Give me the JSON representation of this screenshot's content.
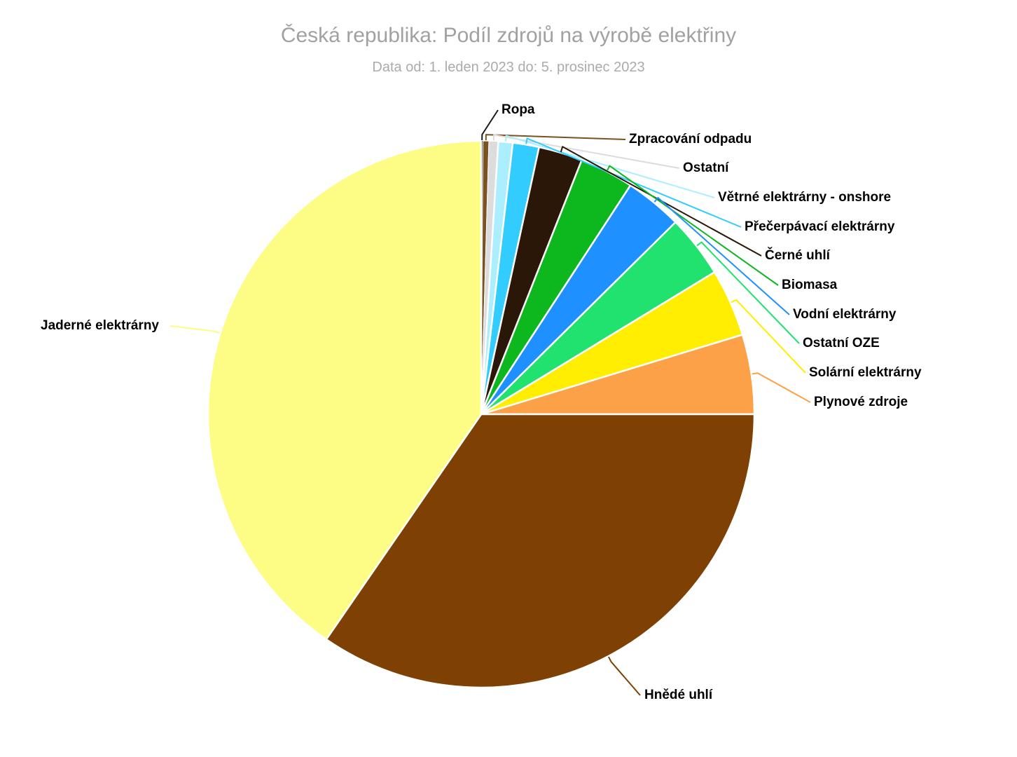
{
  "header": {
    "title": "Česká republika: Podíl zdrojů na výrobě elektřiny",
    "subtitle": "Data od: 1. leden 2023 do: 5. prosinec 2023"
  },
  "colors": {
    "background": "#ffffff",
    "title_text": "#a1a1a1",
    "subtitle_text": "#ababab",
    "slice_border": "#ffffff",
    "label_text": "#000000",
    "label_halo": "#ffffff"
  },
  "chart_data": {
    "type": "pie",
    "title": "Česká republika: Podíl zdrojů na výrobě elektřiny",
    "subtitle": "Data od: 1. leden 2023 do: 5. prosinec 2023",
    "unit": "percent_share",
    "legend_position": "none",
    "data_labels": "outside-with-connectors",
    "start_angle_deg": 0,
    "direction": "clockwise",
    "slices": [
      {
        "id": "ropa",
        "label": "Ropa",
        "value": 0.1,
        "color": "#1a1a1a"
      },
      {
        "id": "odpad",
        "label": "Zpracování odpadu",
        "value": 0.35,
        "color": "#7b5222"
      },
      {
        "id": "ostatni",
        "label": "Ostatní",
        "value": 0.55,
        "color": "#dcdcdc"
      },
      {
        "id": "vetrne",
        "label": "Větrné elektrárny - onshore",
        "value": 0.85,
        "color": "#aaeeff"
      },
      {
        "id": "precerpavaci",
        "label": "Přečerpávací elektrárny",
        "value": 1.55,
        "color": "#33ccff"
      },
      {
        "id": "cerne-uhli",
        "label": "Černé uhlí",
        "value": 2.6,
        "color": "#2b1708"
      },
      {
        "id": "biomasa",
        "label": "Biomasa",
        "value": 3.2,
        "color": "#0db81f"
      },
      {
        "id": "vodni",
        "label": "Vodní elektrárny",
        "value": 3.4,
        "color": "#1e90ff"
      },
      {
        "id": "ostatni-oze",
        "label": "Ostatní OZE",
        "value": 3.7,
        "color": "#21e26e"
      },
      {
        "id": "solarni",
        "label": "Solární elektrárny",
        "value": 4.0,
        "color": "#ffee00"
      },
      {
        "id": "plynove",
        "label": "Plynové zdroje",
        "value": 4.7,
        "color": "#fda148"
      },
      {
        "id": "hnede-uhli",
        "label": "Hnědé uhlí",
        "value": 34.6,
        "color": "#7f4103"
      },
      {
        "id": "jaderne",
        "label": "Jaderné elektrárny",
        "value": 40.4,
        "color": "#fdfc85"
      }
    ]
  }
}
